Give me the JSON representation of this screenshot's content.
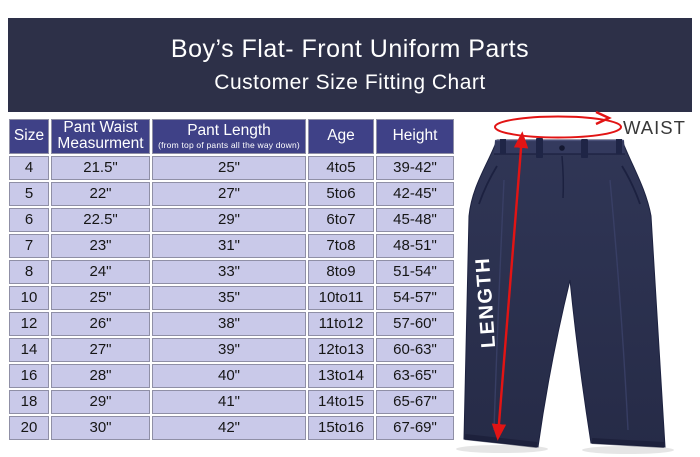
{
  "banner": {
    "title": "Boy’s Flat- Front Uniform Parts",
    "subtitle": "Customer Size Fitting Chart"
  },
  "chart_data": {
    "type": "table",
    "title": "Customer Size Fitting Chart",
    "columns": [
      {
        "label": "Size",
        "sub": ""
      },
      {
        "label": "Pant Waist Measurment",
        "sub": ""
      },
      {
        "label": "Pant Length",
        "sub": "(from top of pants all the way down)"
      },
      {
        "label": "Age",
        "sub": ""
      },
      {
        "label": "Height",
        "sub": ""
      }
    ],
    "rows": [
      [
        "4",
        "21.5\"",
        "25\"",
        "4to5",
        "39-42\""
      ],
      [
        "5",
        "22\"",
        "27\"",
        "5to6",
        "42-45\""
      ],
      [
        "6",
        "22.5\"",
        "29\"",
        "6to7",
        "45-48\""
      ],
      [
        "7",
        "23\"",
        "31\"",
        "7to8",
        "48-51\""
      ],
      [
        "8",
        "24\"",
        "33\"",
        "8to9",
        "51-54\""
      ],
      [
        "10",
        "25\"",
        "35\"",
        "10to11",
        "54-57\""
      ],
      [
        "12",
        "26\"",
        "38\"",
        "11to12",
        "57-60\""
      ],
      [
        "14",
        "27\"",
        "39\"",
        "12to13",
        "60-63\""
      ],
      [
        "16",
        "28\"",
        "40\"",
        "13to14",
        "63-65\""
      ],
      [
        "18",
        "29\"",
        "41\"",
        "14to15",
        "65-67\""
      ],
      [
        "20",
        "30\"",
        "42\"",
        "15to16",
        "67-69\""
      ]
    ]
  },
  "diagram": {
    "waist_label": "WAIST",
    "length_label": "LENGTH"
  },
  "colors": {
    "banner_bg": "#2d3048",
    "header_bg": "#3f4187",
    "row_bg": "#c9c9e9",
    "grid_line": "#8f8fa6",
    "pants_navy": "#2a2f4e",
    "arrow_red": "#e21414",
    "waist_text": "#383838"
  }
}
